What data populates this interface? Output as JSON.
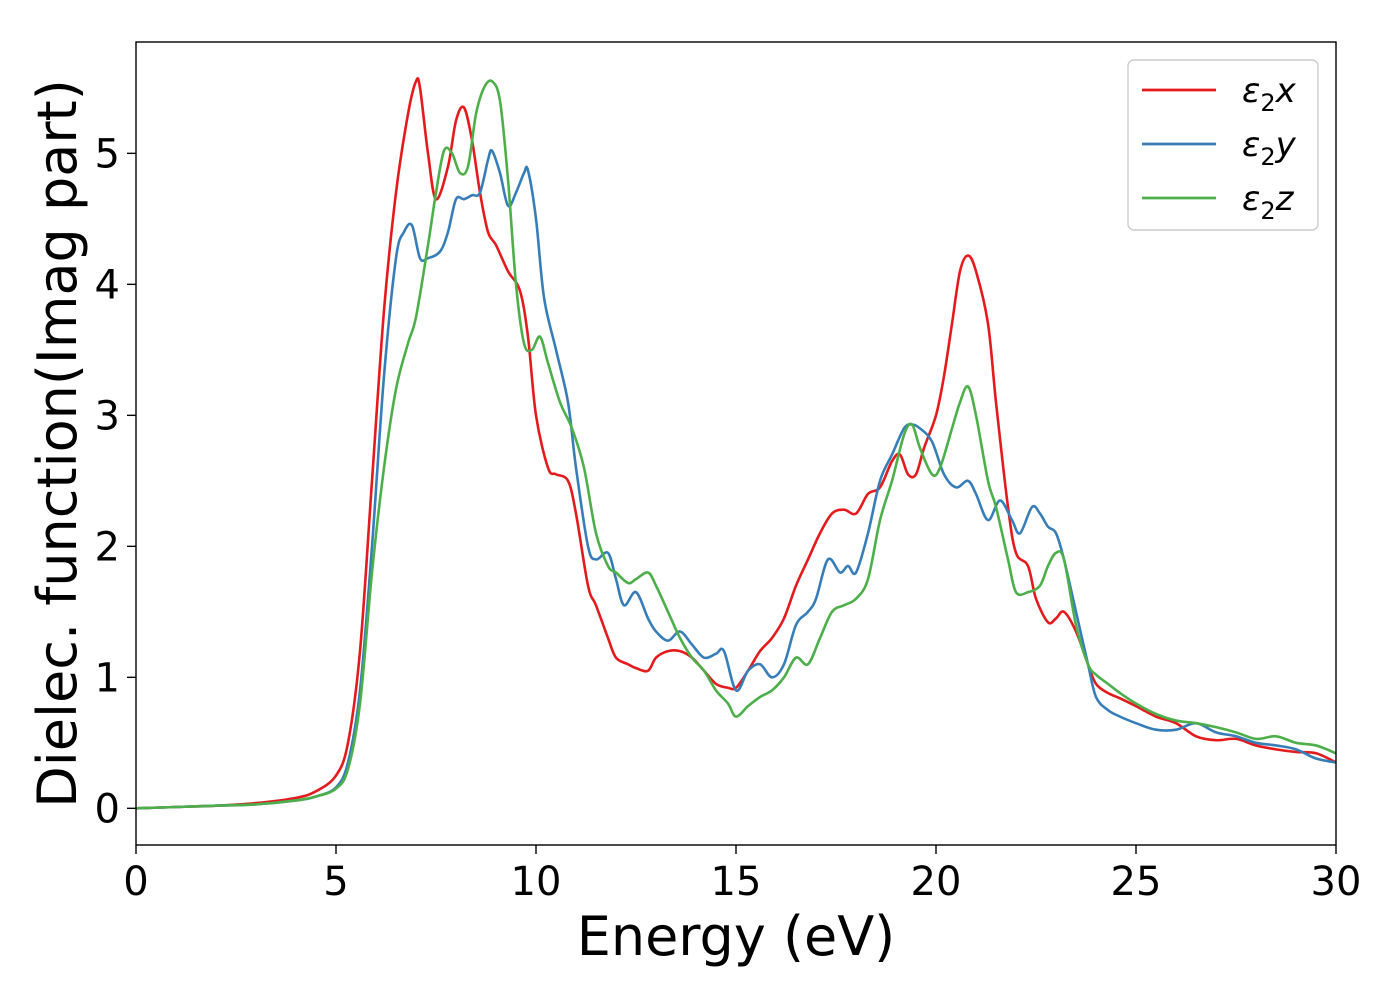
{
  "chart_data": {
    "type": "line",
    "title": "",
    "xlabel": "Energy (eV)",
    "ylabel": "Dielec. function(Imag part)",
    "xlim": [
      0,
      30
    ],
    "ylim": [
      -0.28,
      5.85
    ],
    "xticks": [
      0,
      5,
      10,
      15,
      20,
      25,
      30
    ],
    "yticks": [
      0,
      1,
      2,
      3,
      4,
      5
    ],
    "grid": false,
    "legend_position": "top-right",
    "series": [
      {
        "name": "ε₂x",
        "label_base": "ε",
        "label_sub": "2",
        "label_suffix": "x",
        "color": "#e41a1c",
        "x": [
          0,
          1,
          2,
          3,
          4,
          4.5,
          5,
          5.3,
          5.6,
          5.9,
          6.2,
          6.5,
          6.8,
          7.0,
          7.1,
          7.3,
          7.5,
          7.8,
          8.0,
          8.2,
          8.4,
          8.6,
          8.8,
          9.0,
          9.3,
          9.6,
          9.8,
          10.0,
          10.3,
          10.5,
          10.8,
          11.0,
          11.3,
          11.5,
          11.8,
          12.0,
          12.3,
          12.5,
          12.8,
          13.0,
          13.3,
          13.6,
          13.9,
          14.2,
          14.5,
          14.8,
          15.0,
          15.3,
          15.6,
          15.9,
          16.2,
          16.5,
          16.8,
          17.1,
          17.4,
          17.7,
          18.0,
          18.3,
          18.6,
          18.9,
          19.1,
          19.3,
          19.5,
          19.7,
          20.0,
          20.2,
          20.4,
          20.6,
          20.8,
          21.0,
          21.3,
          21.5,
          21.8,
          22.0,
          22.3,
          22.5,
          22.8,
          23.0,
          23.2,
          23.5,
          23.8,
          24.0,
          24.3,
          24.6,
          25.0,
          25.5,
          26.0,
          26.5,
          27.0,
          27.5,
          28.0,
          28.5,
          29.0,
          29.5,
          30.0
        ],
        "values": [
          0.0,
          0.01,
          0.02,
          0.04,
          0.08,
          0.13,
          0.25,
          0.5,
          1.2,
          2.5,
          3.8,
          4.7,
          5.3,
          5.55,
          5.5,
          5.0,
          4.65,
          4.9,
          5.25,
          5.35,
          5.1,
          4.7,
          4.4,
          4.3,
          4.1,
          3.95,
          3.6,
          3.0,
          2.6,
          2.55,
          2.5,
          2.25,
          1.7,
          1.55,
          1.3,
          1.15,
          1.1,
          1.07,
          1.05,
          1.15,
          1.2,
          1.2,
          1.15,
          1.05,
          0.95,
          0.92,
          0.92,
          1.05,
          1.2,
          1.3,
          1.45,
          1.7,
          1.9,
          2.1,
          2.25,
          2.28,
          2.25,
          2.4,
          2.45,
          2.65,
          2.7,
          2.55,
          2.55,
          2.75,
          3.0,
          3.3,
          3.7,
          4.1,
          4.22,
          4.1,
          3.7,
          3.1,
          2.3,
          1.95,
          1.85,
          1.6,
          1.42,
          1.45,
          1.5,
          1.35,
          1.1,
          0.95,
          0.88,
          0.84,
          0.78,
          0.7,
          0.65,
          0.55,
          0.52,
          0.53,
          0.48,
          0.45,
          0.43,
          0.42,
          0.35
        ]
      },
      {
        "name": "ε₂y",
        "label_base": "ε",
        "label_sub": "2",
        "label_suffix": "y",
        "color": "#377eb8",
        "x": [
          0,
          1,
          2,
          3,
          4,
          4.5,
          5,
          5.3,
          5.6,
          5.9,
          6.2,
          6.5,
          6.7,
          6.9,
          7.1,
          7.3,
          7.6,
          7.8,
          8.0,
          8.2,
          8.4,
          8.6,
          8.8,
          8.9,
          9.1,
          9.3,
          9.5,
          9.7,
          9.8,
          10.0,
          10.2,
          10.5,
          10.8,
          11.0,
          11.3,
          11.5,
          11.8,
          12.0,
          12.2,
          12.5,
          12.8,
          13.0,
          13.3,
          13.6,
          13.9,
          14.2,
          14.5,
          14.7,
          15.0,
          15.3,
          15.6,
          15.9,
          16.2,
          16.5,
          16.8,
          17.0,
          17.3,
          17.6,
          17.8,
          18.0,
          18.3,
          18.6,
          18.9,
          19.2,
          19.4,
          19.6,
          19.9,
          20.2,
          20.5,
          20.8,
          21.0,
          21.3,
          21.6,
          21.9,
          22.1,
          22.4,
          22.6,
          22.8,
          23.0,
          23.2,
          23.5,
          23.8,
          24.0,
          24.3,
          24.6,
          25.0,
          25.5,
          26.0,
          26.5,
          27.0,
          27.5,
          28.0,
          28.5,
          29.0,
          29.5,
          30.0
        ],
        "values": [
          0.0,
          0.01,
          0.02,
          0.03,
          0.06,
          0.09,
          0.16,
          0.35,
          0.9,
          2.0,
          3.3,
          4.2,
          4.4,
          4.45,
          4.2,
          4.2,
          4.25,
          4.4,
          4.65,
          4.65,
          4.68,
          4.7,
          4.95,
          5.02,
          4.85,
          4.6,
          4.7,
          4.85,
          4.87,
          4.5,
          3.9,
          3.5,
          3.1,
          2.6,
          2.0,
          1.9,
          1.95,
          1.75,
          1.55,
          1.65,
          1.45,
          1.35,
          1.28,
          1.35,
          1.25,
          1.15,
          1.18,
          1.2,
          0.9,
          1.05,
          1.1,
          1.0,
          1.1,
          1.4,
          1.5,
          1.6,
          1.9,
          1.8,
          1.85,
          1.8,
          2.1,
          2.5,
          2.7,
          2.9,
          2.93,
          2.9,
          2.8,
          2.55,
          2.45,
          2.5,
          2.4,
          2.2,
          2.35,
          2.2,
          2.1,
          2.3,
          2.25,
          2.15,
          2.1,
          1.9,
          1.5,
          1.1,
          0.85,
          0.75,
          0.7,
          0.65,
          0.6,
          0.6,
          0.65,
          0.58,
          0.55,
          0.5,
          0.48,
          0.45,
          0.38,
          0.35
        ]
      },
      {
        "name": "ε₂z",
        "label_base": "ε",
        "label_sub": "2",
        "label_suffix": "z",
        "color": "#4daf4a",
        "x": [
          0,
          1,
          2,
          3,
          4,
          4.5,
          5,
          5.3,
          5.6,
          5.9,
          6.2,
          6.5,
          6.8,
          7.0,
          7.3,
          7.5,
          7.7,
          7.9,
          8.1,
          8.3,
          8.5,
          8.7,
          8.9,
          9.1,
          9.3,
          9.5,
          9.7,
          9.9,
          10.1,
          10.3,
          10.6,
          10.9,
          11.2,
          11.5,
          11.8,
          12.0,
          12.3,
          12.5,
          12.8,
          13.0,
          13.3,
          13.6,
          13.9,
          14.2,
          14.5,
          14.8,
          15.0,
          15.3,
          15.6,
          15.9,
          16.2,
          16.5,
          16.8,
          17.1,
          17.4,
          17.7,
          18.0,
          18.3,
          18.6,
          18.9,
          19.2,
          19.4,
          19.6,
          19.9,
          20.1,
          20.4,
          20.6,
          20.8,
          21.0,
          21.3,
          21.5,
          21.8,
          22.0,
          22.3,
          22.6,
          22.8,
          23.0,
          23.2,
          23.5,
          23.8,
          24.0,
          24.3,
          24.6,
          25.0,
          25.5,
          26.0,
          26.5,
          27.0,
          27.5,
          28.0,
          28.5,
          29.0,
          29.5,
          30.0
        ],
        "values": [
          0.0,
          0.01,
          0.02,
          0.03,
          0.06,
          0.09,
          0.15,
          0.3,
          0.8,
          1.8,
          2.6,
          3.2,
          3.55,
          3.75,
          4.3,
          4.7,
          5.02,
          5.0,
          4.85,
          4.9,
          5.3,
          5.5,
          5.55,
          5.4,
          4.8,
          4.0,
          3.55,
          3.5,
          3.6,
          3.4,
          3.1,
          2.9,
          2.6,
          2.1,
          1.85,
          1.8,
          1.72,
          1.75,
          1.8,
          1.7,
          1.5,
          1.3,
          1.15,
          1.05,
          0.9,
          0.8,
          0.7,
          0.78,
          0.85,
          0.9,
          1.0,
          1.15,
          1.1,
          1.3,
          1.5,
          1.55,
          1.6,
          1.75,
          2.2,
          2.5,
          2.85,
          2.93,
          2.75,
          2.55,
          2.6,
          2.9,
          3.1,
          3.22,
          3.0,
          2.5,
          2.3,
          1.9,
          1.65,
          1.65,
          1.7,
          1.85,
          1.95,
          1.9,
          1.4,
          1.1,
          1.02,
          0.95,
          0.88,
          0.8,
          0.72,
          0.67,
          0.65,
          0.62,
          0.58,
          0.53,
          0.55,
          0.5,
          0.48,
          0.42
        ]
      }
    ]
  }
}
